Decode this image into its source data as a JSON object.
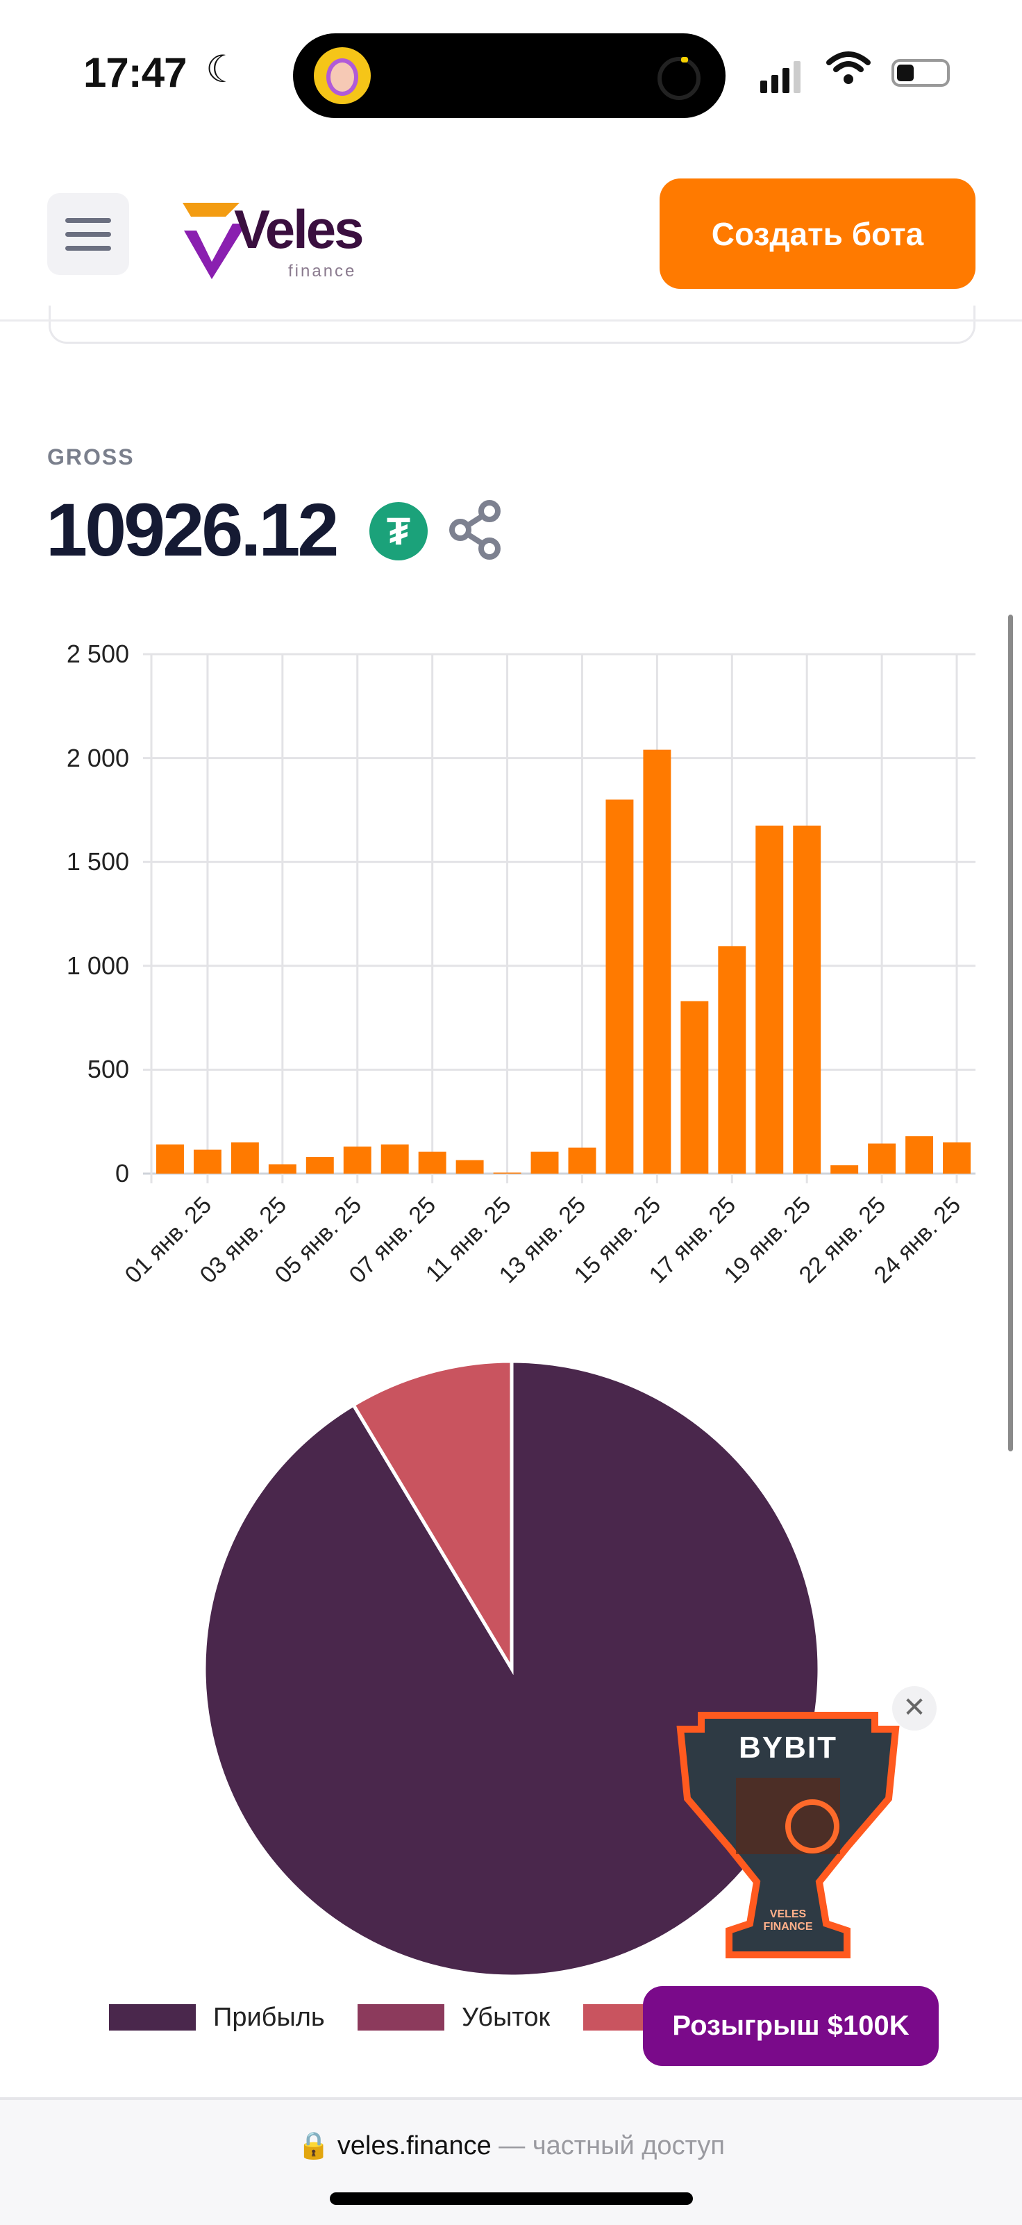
{
  "status_bar": {
    "time": "17:47",
    "focus_icon": "moon-icon"
  },
  "header": {
    "logo_text": "Veles",
    "logo_subtext": "finance",
    "create_bot_label": "Создать бота"
  },
  "summary": {
    "label": "GROSS",
    "value": "10926.12",
    "currency_icon": "tether-icon",
    "currency_symbol": "₮"
  },
  "colors": {
    "accent": "#ff7a00",
    "bar": "#ff7a00",
    "profit": "#4a274c",
    "loss": "#8c3a5c",
    "third": "#c9545f",
    "promo": "#7a0a8a"
  },
  "chart_data": [
    {
      "type": "bar",
      "title": "",
      "xlabel": "",
      "ylabel": "",
      "values": [
        140,
        115,
        150,
        45,
        80,
        130,
        140,
        105,
        65,
        5,
        105,
        125,
        1800,
        2040,
        830,
        1095,
        1675,
        1675,
        40,
        145,
        180,
        150
      ],
      "x_tick_labels": [
        "01 янв. 25",
        "03 янв. 25",
        "05 янв. 25",
        "07 янв. 25",
        "11 янв. 25",
        "13 янв. 25",
        "15 янв. 25",
        "17 янв. 25",
        "19 янв. 25",
        "22 янв. 25",
        "24 янв. 25"
      ],
      "y_tick_labels": [
        "2 500",
        "2 000",
        "1 500",
        "1 000",
        "500",
        "0"
      ],
      "ylim": [
        0,
        2500
      ],
      "grid": true,
      "legend": "none"
    },
    {
      "type": "pie",
      "legend_entries": [
        "Прибыль",
        "Убыток"
      ],
      "values": [
        91.4,
        0,
        8.6
      ],
      "legend": "bottom"
    }
  ],
  "promo": {
    "trophy_text": "BYBIT",
    "trophy_sub": "VELES FINANCE",
    "close_icon": "close-icon",
    "button_label": "Розыгрыш $100K"
  },
  "browser": {
    "host": "veles.finance",
    "suffix": "— частный доступ"
  }
}
